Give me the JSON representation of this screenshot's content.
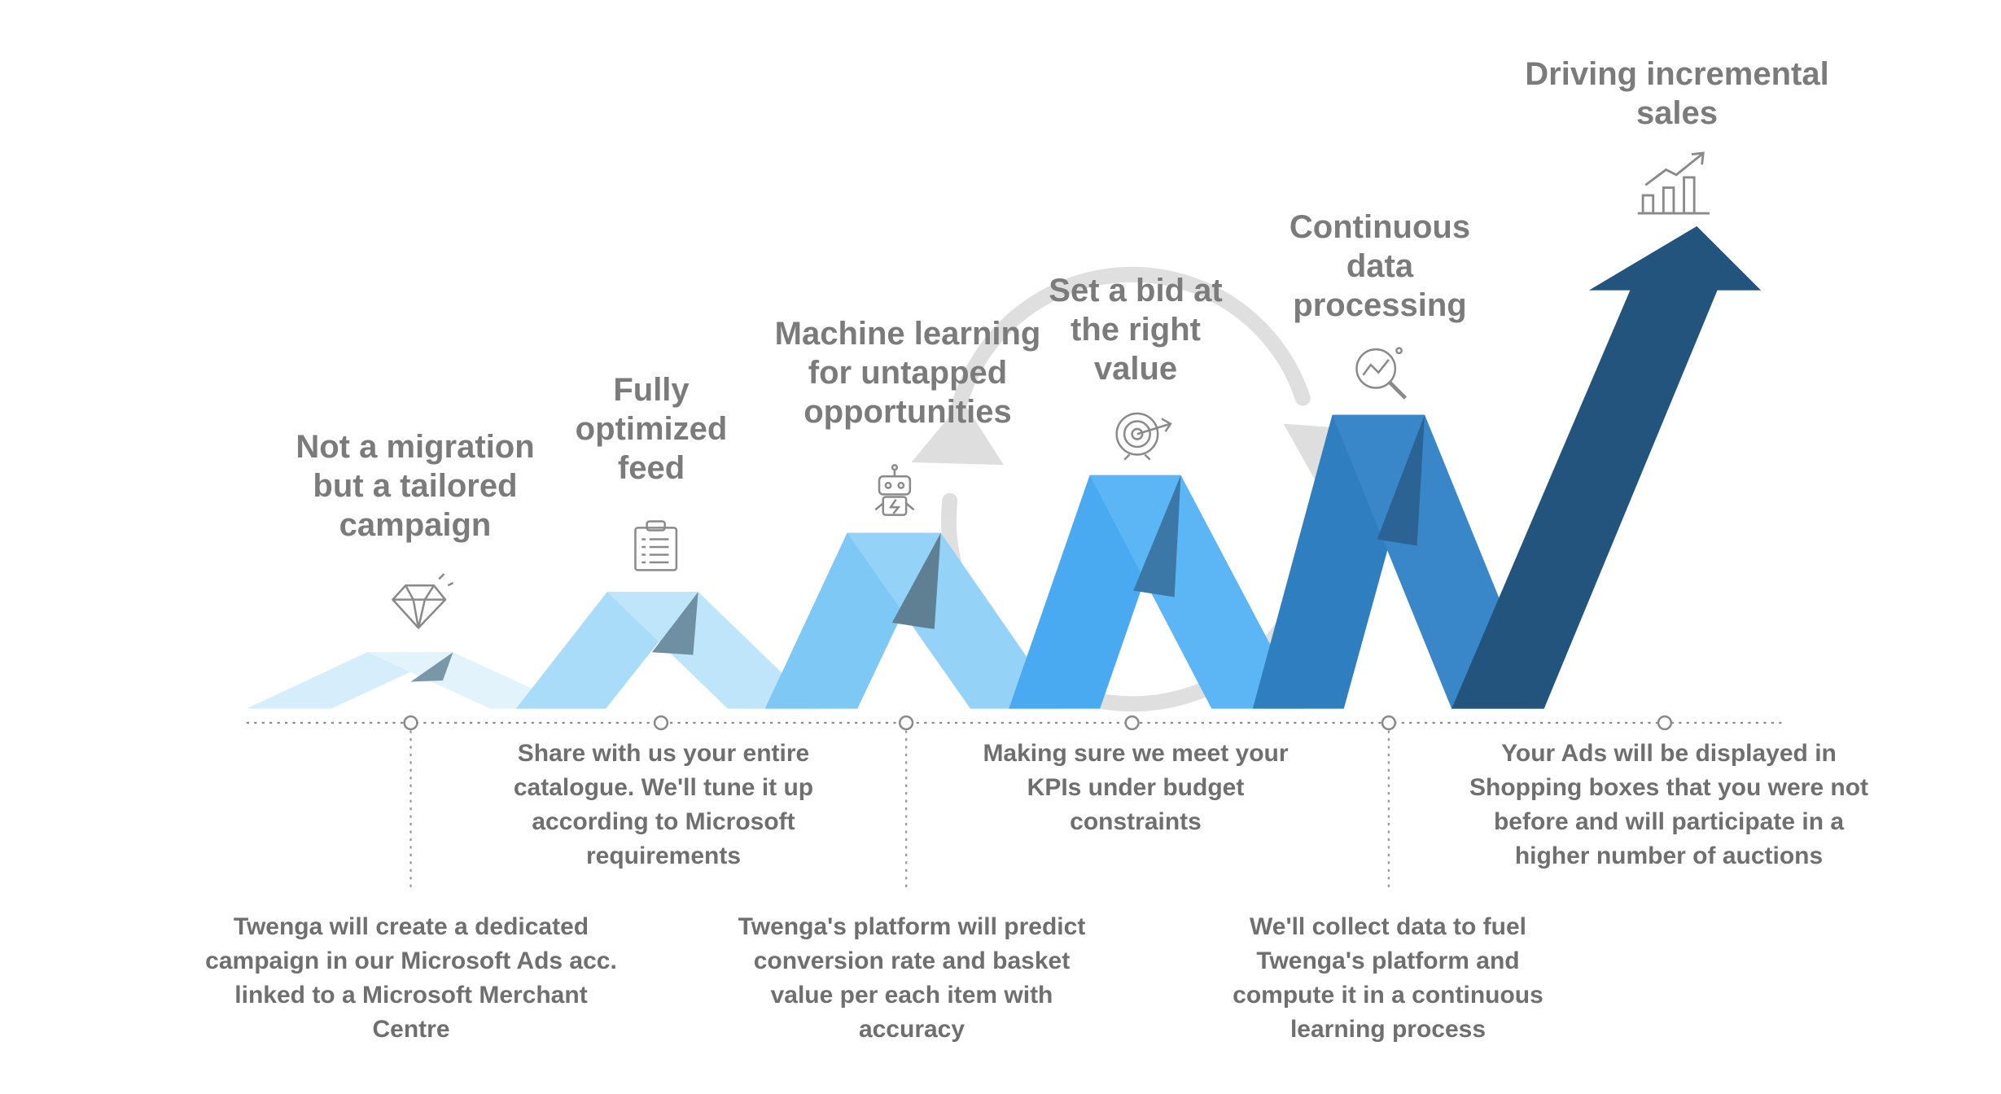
{
  "steps": [
    {
      "title": "Not a migration\nbut a tailored\ncampaign",
      "icon": "diamond-icon",
      "description": "Twenga will create a dedicated\ncampaign in our Microsoft Ads acc.\nlinked to a Microsoft Merchant\nCentre",
      "color": "#d6eefb"
    },
    {
      "title": "Fully\noptimized\nfeed",
      "icon": "clipboard-icon",
      "description": "Share with us your entire\ncatalogue. We'll tune it up\naccording to Microsoft\nrequirements",
      "color": "#a9dcf8"
    },
    {
      "title": "Machine learning\nfor untapped\nopportunities",
      "icon": "robot-icon",
      "description": "Twenga's platform will predict\nconversion rate and basket\nvalue per each item with\naccuracy",
      "color": "#7ec8f6"
    },
    {
      "title": "Set a bid at\nthe right\nvalue",
      "icon": "target-icon",
      "description": "Making sure we meet your\nKPIs under budget\nconstraints",
      "color": "#49aaf1"
    },
    {
      "title": "Continuous\ndata\nprocessing",
      "icon": "magnifier-chart-icon",
      "description": "We'll collect data to fuel\nTwenga's platform and\ncompute it in a continuous\nlearning process",
      "color": "#2f7fc0"
    },
    {
      "title": "Driving incremental\nsales",
      "icon": "growth-chart-icon",
      "description": "Your Ads will be displayed in\nShopping boxes that you were not\nbefore and will participate in a\nhigher number of auctions",
      "color": "#22547d"
    }
  ],
  "background_icon": "cycle-arrows-icon"
}
